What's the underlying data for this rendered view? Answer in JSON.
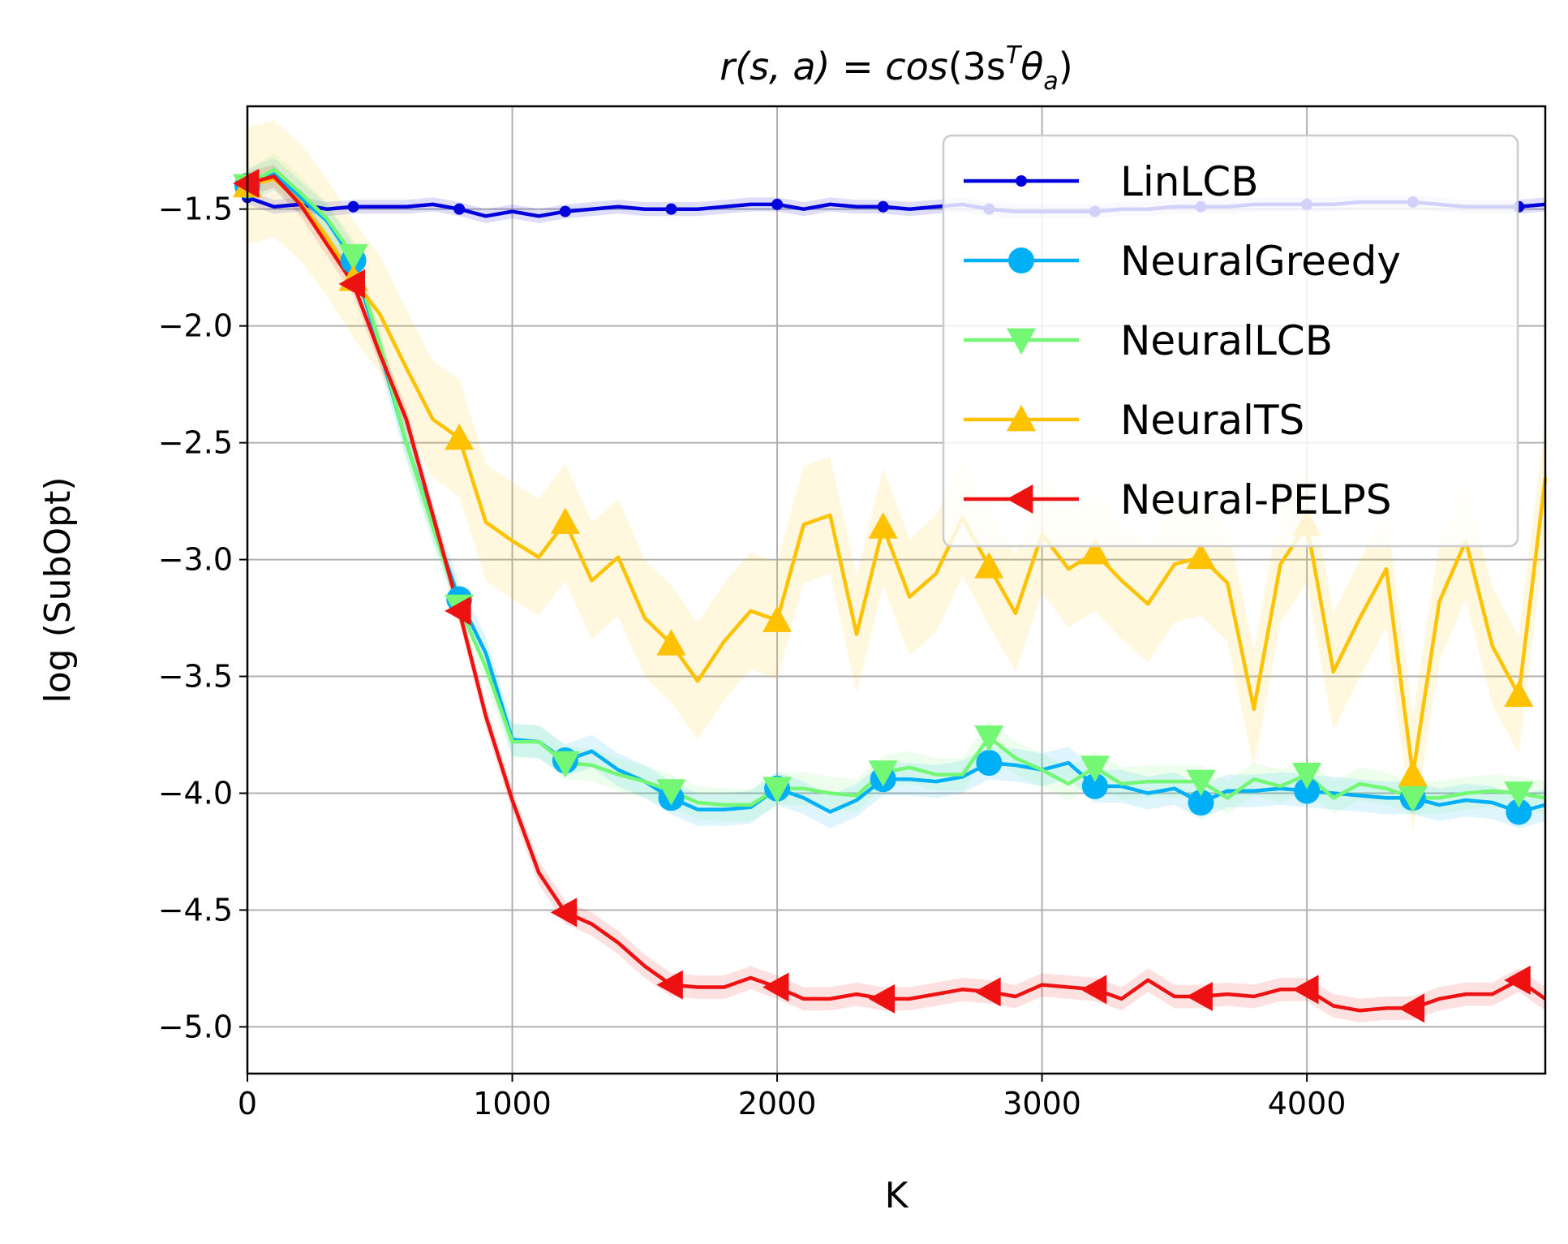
{
  "chart_data": {
    "type": "line",
    "title": {
      "r": "r",
      "args": "(s, a) = ",
      "fn": "cos",
      "open": "(3s",
      "sup": "T",
      "theta": "θ",
      "sub": "a",
      "close": ")"
    },
    "xlabel": "K",
    "ylabel": "log (SubOpt)",
    "xlim": [
      0,
      4900
    ],
    "ylim": [
      -5.2,
      -1.06
    ],
    "xticks": [
      0,
      1000,
      2000,
      3000,
      4000
    ],
    "yticks": [
      -1.5,
      -2.0,
      -2.5,
      -3.0,
      -3.5,
      -4.0,
      -4.5,
      -5.0
    ],
    "xtick_labels": [
      "0",
      "1000",
      "2000",
      "3000",
      "4000"
    ],
    "ytick_labels": [
      "−1.5",
      "−2.0",
      "−2.5",
      "−3.0",
      "−3.5",
      "−4.0",
      "−4.5",
      "−5.0"
    ],
    "grid": true,
    "legend_position": "top-right",
    "x": [
      0,
      100,
      200,
      300,
      400,
      500,
      600,
      700,
      800,
      900,
      1000,
      1100,
      1200,
      1300,
      1400,
      1500,
      1600,
      1700,
      1800,
      1900,
      2000,
      2100,
      2200,
      2300,
      2400,
      2500,
      2600,
      2700,
      2800,
      2900,
      3000,
      3100,
      3200,
      3300,
      3400,
      3500,
      3600,
      3700,
      3800,
      3900,
      4000,
      4100,
      4200,
      4300,
      4400,
      4500,
      4600,
      4700,
      4800,
      4900
    ],
    "series": [
      {
        "name": "LinLCB",
        "color": "#0000dd",
        "marker": "dot",
        "band": 0.03,
        "values": [
          -1.45,
          -1.49,
          -1.48,
          -1.5,
          -1.49,
          -1.49,
          -1.49,
          -1.48,
          -1.5,
          -1.53,
          -1.51,
          -1.53,
          -1.51,
          -1.5,
          -1.49,
          -1.5,
          -1.5,
          -1.5,
          -1.49,
          -1.48,
          -1.48,
          -1.5,
          -1.48,
          -1.49,
          -1.49,
          -1.5,
          -1.49,
          -1.48,
          -1.5,
          -1.51,
          -1.51,
          -1.51,
          -1.51,
          -1.5,
          -1.5,
          -1.49,
          -1.49,
          -1.49,
          -1.48,
          -1.48,
          -1.48,
          -1.48,
          -1.47,
          -1.47,
          -1.47,
          -1.48,
          -1.49,
          -1.49,
          -1.49,
          -1.48
        ]
      },
      {
        "name": "NeuralGreedy",
        "color": "#00b0f6",
        "marker": "circle",
        "band": 0.07,
        "values": [
          -1.4,
          -1.35,
          -1.45,
          -1.55,
          -1.72,
          -2.1,
          -2.5,
          -2.85,
          -3.17,
          -3.4,
          -3.77,
          -3.78,
          -3.86,
          -3.82,
          -3.9,
          -3.95,
          -4.02,
          -4.07,
          -4.07,
          -4.06,
          -3.98,
          -4.02,
          -4.08,
          -4.03,
          -3.94,
          -3.94,
          -3.95,
          -3.93,
          -3.87,
          -3.88,
          -3.9,
          -3.87,
          -3.97,
          -3.97,
          -4.0,
          -3.98,
          -4.04,
          -3.99,
          -3.99,
          -3.98,
          -3.99,
          -4.0,
          -4.01,
          -4.02,
          -4.02,
          -4.05,
          -4.03,
          -4.04,
          -4.08,
          -4.05
        ]
      },
      {
        "name": "NeuralLCB",
        "color": "#74f774",
        "marker": "triangle-down",
        "band": 0.07,
        "values": [
          -1.4,
          -1.33,
          -1.43,
          -1.54,
          -1.7,
          -2.08,
          -2.5,
          -2.86,
          -3.2,
          -3.46,
          -3.78,
          -3.78,
          -3.87,
          -3.88,
          -3.92,
          -3.95,
          -3.99,
          -4.04,
          -4.05,
          -4.05,
          -3.98,
          -3.98,
          -4.0,
          -4.01,
          -3.91,
          -3.89,
          -3.92,
          -3.92,
          -3.76,
          -3.85,
          -3.9,
          -3.96,
          -3.89,
          -3.96,
          -3.95,
          -3.95,
          -3.95,
          -4.02,
          -3.94,
          -3.97,
          -3.92,
          -4.02,
          -3.96,
          -3.98,
          -4.02,
          -4.02,
          -4.0,
          -3.99,
          -4.0,
          -4.02
        ]
      },
      {
        "name": "NeuralTS",
        "color": "#ffc200",
        "marker": "triangle-up",
        "band": 0.25,
        "values": [
          -1.4,
          -1.37,
          -1.47,
          -1.62,
          -1.8,
          -1.95,
          -2.18,
          -2.4,
          -2.48,
          -2.84,
          -2.92,
          -2.99,
          -2.84,
          -3.09,
          -2.99,
          -3.25,
          -3.36,
          -3.52,
          -3.35,
          -3.22,
          -3.26,
          -2.85,
          -2.81,
          -3.32,
          -2.86,
          -3.16,
          -3.06,
          -2.82,
          -3.03,
          -3.23,
          -2.89,
          -3.04,
          -2.97,
          -3.09,
          -3.19,
          -3.02,
          -2.99,
          -3.1,
          -3.64,
          -3.02,
          -2.85,
          -3.48,
          -3.25,
          -3.04,
          -3.92,
          -3.18,
          -2.92,
          -3.37,
          -3.58,
          -2.65
        ]
      },
      {
        "name": "Neural-PELPS",
        "color": "#ee1111",
        "marker": "triangle-left",
        "band": 0.05,
        "values": [
          -1.39,
          -1.36,
          -1.48,
          -1.65,
          -1.82,
          -2.12,
          -2.4,
          -2.81,
          -3.22,
          -3.67,
          -4.03,
          -4.34,
          -4.51,
          -4.56,
          -4.64,
          -4.74,
          -4.82,
          -4.83,
          -4.83,
          -4.79,
          -4.83,
          -4.88,
          -4.88,
          -4.86,
          -4.88,
          -4.88,
          -4.86,
          -4.84,
          -4.85,
          -4.87,
          -4.82,
          -4.83,
          -4.84,
          -4.88,
          -4.8,
          -4.87,
          -4.87,
          -4.86,
          -4.87,
          -4.84,
          -4.84,
          -4.91,
          -4.93,
          -4.92,
          -4.92,
          -4.88,
          -4.86,
          -4.86,
          -4.8,
          -4.88
        ]
      }
    ]
  }
}
